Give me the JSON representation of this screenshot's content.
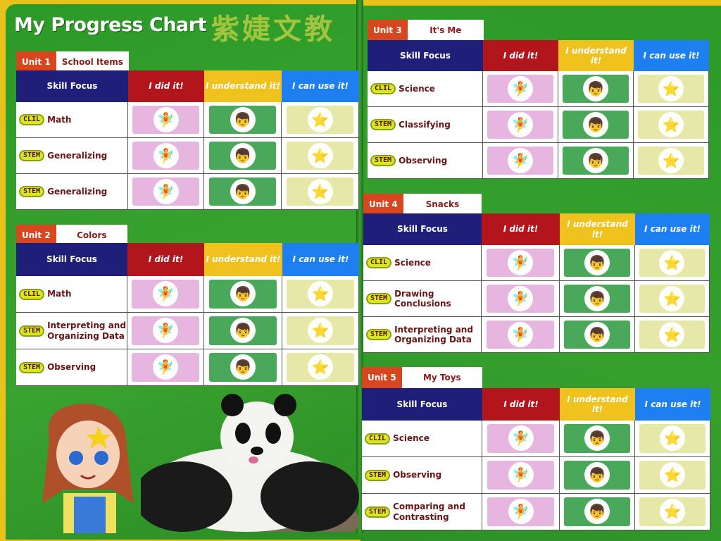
{
  "title": "My Progress Chart",
  "headers": {
    "skill": "Skill Focus",
    "did": "I did it!",
    "understand": "I understand it!",
    "use": "I can use it!"
  },
  "units": [
    {
      "num": "Unit 1",
      "name": "School Items",
      "rows": [
        {
          "badge": "CLIL",
          "skill": "Math"
        },
        {
          "badge": "STEM",
          "skill": "Generalizing"
        },
        {
          "badge": "STEM",
          "skill": "Generalizing"
        }
      ]
    },
    {
      "num": "Unit 2",
      "name": "Colors",
      "rows": [
        {
          "badge": "CLIL",
          "skill": "Math"
        },
        {
          "badge": "STEM",
          "skill": "Interpreting and Organizing Data"
        },
        {
          "badge": "STEM",
          "skill": "Observing"
        }
      ]
    },
    {
      "num": "Unit 3",
      "name": "It's Me",
      "rows": [
        {
          "badge": "CLIL",
          "skill": "Science"
        },
        {
          "badge": "STEM",
          "skill": "Classifying"
        },
        {
          "badge": "STEM",
          "skill": "Observing"
        }
      ]
    },
    {
      "num": "Unit 4",
      "name": "Snacks",
      "rows": [
        {
          "badge": "CLIL",
          "skill": "Science"
        },
        {
          "badge": "STEM",
          "skill": "Drawing Conclusions"
        },
        {
          "badge": "STEM",
          "skill": "Interpreting and Organizing Data"
        }
      ]
    },
    {
      "num": "Unit 5",
      "name": "My Toys",
      "rows": [
        {
          "badge": "CLIL",
          "skill": "Science"
        },
        {
          "badge": "STEM",
          "skill": "Observing"
        },
        {
          "badge": "STEM",
          "skill": "Comparing and Contrasting"
        }
      ]
    }
  ],
  "icons": {
    "did": "fairy-sticker-icon",
    "understand": "pilot-sticker-icon",
    "use": "star-sticker-icon"
  },
  "colors": {
    "page": "#2f9a2a",
    "unit_tab": "#d7461f",
    "skill_header": "#1f1f7a",
    "did": "#b3151d",
    "understand": "#f0c21d",
    "use": "#1e7ff0"
  },
  "watermark": "紫婕文教"
}
